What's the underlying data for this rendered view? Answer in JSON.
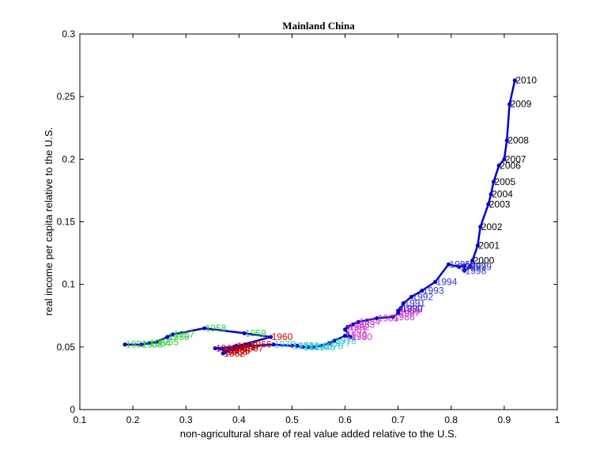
{
  "chart_data": {
    "type": "line",
    "title": "Mainland China",
    "xlabel": "non-agricultural share of real value added relative to the U.S.",
    "ylabel": "real income per capita relative to the U.S.",
    "xlim": [
      0.1,
      1
    ],
    "ylim": [
      0,
      0.3
    ],
    "xticks": [
      "0.1",
      "0.2",
      "0.3",
      "0.4",
      "0.5",
      "0.6",
      "0.7",
      "0.8",
      "0.9",
      "1"
    ],
    "yticks": [
      "0",
      "0.05",
      "0.1",
      "0.15",
      "0.2",
      "0.25",
      "0.3"
    ],
    "grid": false,
    "line_color": "#0000cc",
    "points": [
      {
        "year": 1952,
        "x": 0.185,
        "y": 0.052,
        "label": "1952",
        "color": "#33cc33"
      },
      {
        "year": 1953,
        "x": 0.215,
        "y": 0.052,
        "label": "1953",
        "color": "#33cc33"
      },
      {
        "year": 1954,
        "x": 0.23,
        "y": 0.053,
        "label": "1954",
        "color": "#33cc33"
      },
      {
        "year": 1955,
        "x": 0.245,
        "y": 0.054,
        "label": "1955",
        "color": "#33cc33"
      },
      {
        "year": 1956,
        "x": 0.265,
        "y": 0.058,
        "label": "1956",
        "color": "#33cc33"
      },
      {
        "year": 1957,
        "x": 0.275,
        "y": 0.06,
        "label": "1957",
        "color": "#33cc33"
      },
      {
        "year": 1958,
        "x": 0.335,
        "y": 0.065,
        "label": "1958",
        "color": "#33cc33"
      },
      {
        "year": 1959,
        "x": 0.41,
        "y": 0.061,
        "label": "1959",
        "color": "#33cc33"
      },
      {
        "year": 1960,
        "x": 0.46,
        "y": 0.058,
        "label": "1960",
        "color": "#cc0000"
      },
      {
        "year": 1961,
        "x": 0.39,
        "y": 0.05,
        "label": "1961",
        "color": "#cc0000"
      },
      {
        "year": 1962,
        "x": 0.37,
        "y": 0.045,
        "label": "1962",
        "color": "#cc0000"
      },
      {
        "year": 1963,
        "x": 0.375,
        "y": 0.046,
        "label": "1963",
        "color": "#cc0000"
      },
      {
        "year": 1964,
        "x": 0.38,
        "y": 0.048,
        "label": "1964",
        "color": "#cc0000"
      },
      {
        "year": 1965,
        "x": 0.395,
        "y": 0.051,
        "label": "1965",
        "color": "#cc0000"
      },
      {
        "year": 1966,
        "x": 0.42,
        "y": 0.052,
        "label": "1966",
        "color": "#cc0000"
      },
      {
        "year": 1967,
        "x": 0.405,
        "y": 0.049,
        "label": "1967",
        "color": "#cc0000"
      },
      {
        "year": 1968,
        "x": 0.38,
        "y": 0.047,
        "label": "1968",
        "color": "#cc0000"
      },
      {
        "year": 1969,
        "x": 0.355,
        "y": 0.049,
        "label": "1969",
        "color": "#cc0000"
      },
      {
        "year": 1970,
        "x": 0.465,
        "y": 0.052,
        "label": "1970",
        "color": "#33cccc"
      },
      {
        "year": 1971,
        "x": 0.5,
        "y": 0.051,
        "label": "1971",
        "color": "#33cccc"
      },
      {
        "year": 1972,
        "x": 0.51,
        "y": 0.051,
        "label": "1972",
        "color": "#33cccc"
      },
      {
        "year": 1973,
        "x": 0.52,
        "y": 0.05,
        "label": "1973",
        "color": "#33cccc"
      },
      {
        "year": 1974,
        "x": 0.53,
        "y": 0.05,
        "label": "1974",
        "color": "#33cccc"
      },
      {
        "year": 1975,
        "x": 0.54,
        "y": 0.05,
        "label": "1975",
        "color": "#33cccc"
      },
      {
        "year": 1976,
        "x": 0.555,
        "y": 0.051,
        "label": "1976",
        "color": "#33cccc"
      },
      {
        "year": 1977,
        "x": 0.57,
        "y": 0.053,
        "label": "1977",
        "color": "#33cccc"
      },
      {
        "year": 1978,
        "x": 0.58,
        "y": 0.055,
        "label": "1978",
        "color": "#33cccc"
      },
      {
        "year": 1979,
        "x": 0.6,
        "y": 0.059,
        "label": "1979",
        "color": "#cc33cc"
      },
      {
        "year": 1980,
        "x": 0.61,
        "y": 0.058,
        "label": "1980",
        "color": "#cc33cc"
      },
      {
        "year": 1981,
        "x": 0.6,
        "y": 0.064,
        "label": "1981",
        "color": "#cc33cc"
      },
      {
        "year": 1982,
        "x": 0.605,
        "y": 0.066,
        "label": "1982",
        "color": "#cc33cc"
      },
      {
        "year": 1983,
        "x": 0.615,
        "y": 0.068,
        "label": "1983",
        "color": "#cc33cc"
      },
      {
        "year": 1984,
        "x": 0.625,
        "y": 0.07,
        "label": "1984",
        "color": "#cc33cc"
      },
      {
        "year": 1985,
        "x": 0.66,
        "y": 0.073,
        "label": "1985",
        "color": "#cc33cc"
      },
      {
        "year": 1986,
        "x": 0.69,
        "y": 0.074,
        "label": "1986",
        "color": "#cc33cc"
      },
      {
        "year": 1987,
        "x": 0.7,
        "y": 0.077,
        "label": "1987",
        "color": "#cc33cc"
      },
      {
        "year": 1988,
        "x": 0.705,
        "y": 0.08,
        "label": "1988",
        "color": "#cc33cc"
      },
      {
        "year": 1989,
        "x": 0.7,
        "y": 0.079,
        "label": "1989",
        "color": "#cc33cc"
      },
      {
        "year": 1990,
        "x": 0.705,
        "y": 0.081,
        "label": "1990",
        "color": "#3333cc"
      },
      {
        "year": 1991,
        "x": 0.71,
        "y": 0.085,
        "label": "1991",
        "color": "#3333cc"
      },
      {
        "year": 1992,
        "x": 0.725,
        "y": 0.09,
        "label": "1992",
        "color": "#3333cc"
      },
      {
        "year": 1993,
        "x": 0.745,
        "y": 0.095,
        "label": "1993",
        "color": "#3333cc"
      },
      {
        "year": 1994,
        "x": 0.77,
        "y": 0.102,
        "label": "1994",
        "color": "#3333cc"
      },
      {
        "year": 1995,
        "x": 0.795,
        "y": 0.116,
        "label": "1995",
        "color": "#3333cc"
      },
      {
        "year": 1996,
        "x": 0.815,
        "y": 0.114,
        "label": "1996",
        "color": "#3333cc"
      },
      {
        "year": 1997,
        "x": 0.825,
        "y": 0.115,
        "label": "1997",
        "color": "#3333cc"
      },
      {
        "year": 1998,
        "x": 0.825,
        "y": 0.111,
        "label": "1998",
        "color": "#3333cc"
      },
      {
        "year": 1999,
        "x": 0.835,
        "y": 0.114,
        "label": "1999",
        "color": "#3333cc"
      },
      {
        "year": 2000,
        "x": 0.84,
        "y": 0.119,
        "label": "2000",
        "color": "#000000"
      },
      {
        "year": 2001,
        "x": 0.85,
        "y": 0.131,
        "label": "2001",
        "color": "#000000"
      },
      {
        "year": 2002,
        "x": 0.855,
        "y": 0.146,
        "label": "2002",
        "color": "#000000"
      },
      {
        "year": 2003,
        "x": 0.87,
        "y": 0.164,
        "label": "2003",
        "color": "#000000"
      },
      {
        "year": 2004,
        "x": 0.875,
        "y": 0.172,
        "label": "2004",
        "color": "#000000"
      },
      {
        "year": 2005,
        "x": 0.88,
        "y": 0.182,
        "label": "2005",
        "color": "#000000"
      },
      {
        "year": 2006,
        "x": 0.89,
        "y": 0.195,
        "label": "2006",
        "color": "#000000"
      },
      {
        "year": 2007,
        "x": 0.9,
        "y": 0.2,
        "label": "2007",
        "color": "#000000"
      },
      {
        "year": 2008,
        "x": 0.905,
        "y": 0.215,
        "label": "2008",
        "color": "#000000"
      },
      {
        "year": 2009,
        "x": 0.91,
        "y": 0.244,
        "label": "2009",
        "color": "#000000"
      },
      {
        "year": 2010,
        "x": 0.92,
        "y": 0.263,
        "label": "2010",
        "color": "#000000"
      }
    ]
  }
}
